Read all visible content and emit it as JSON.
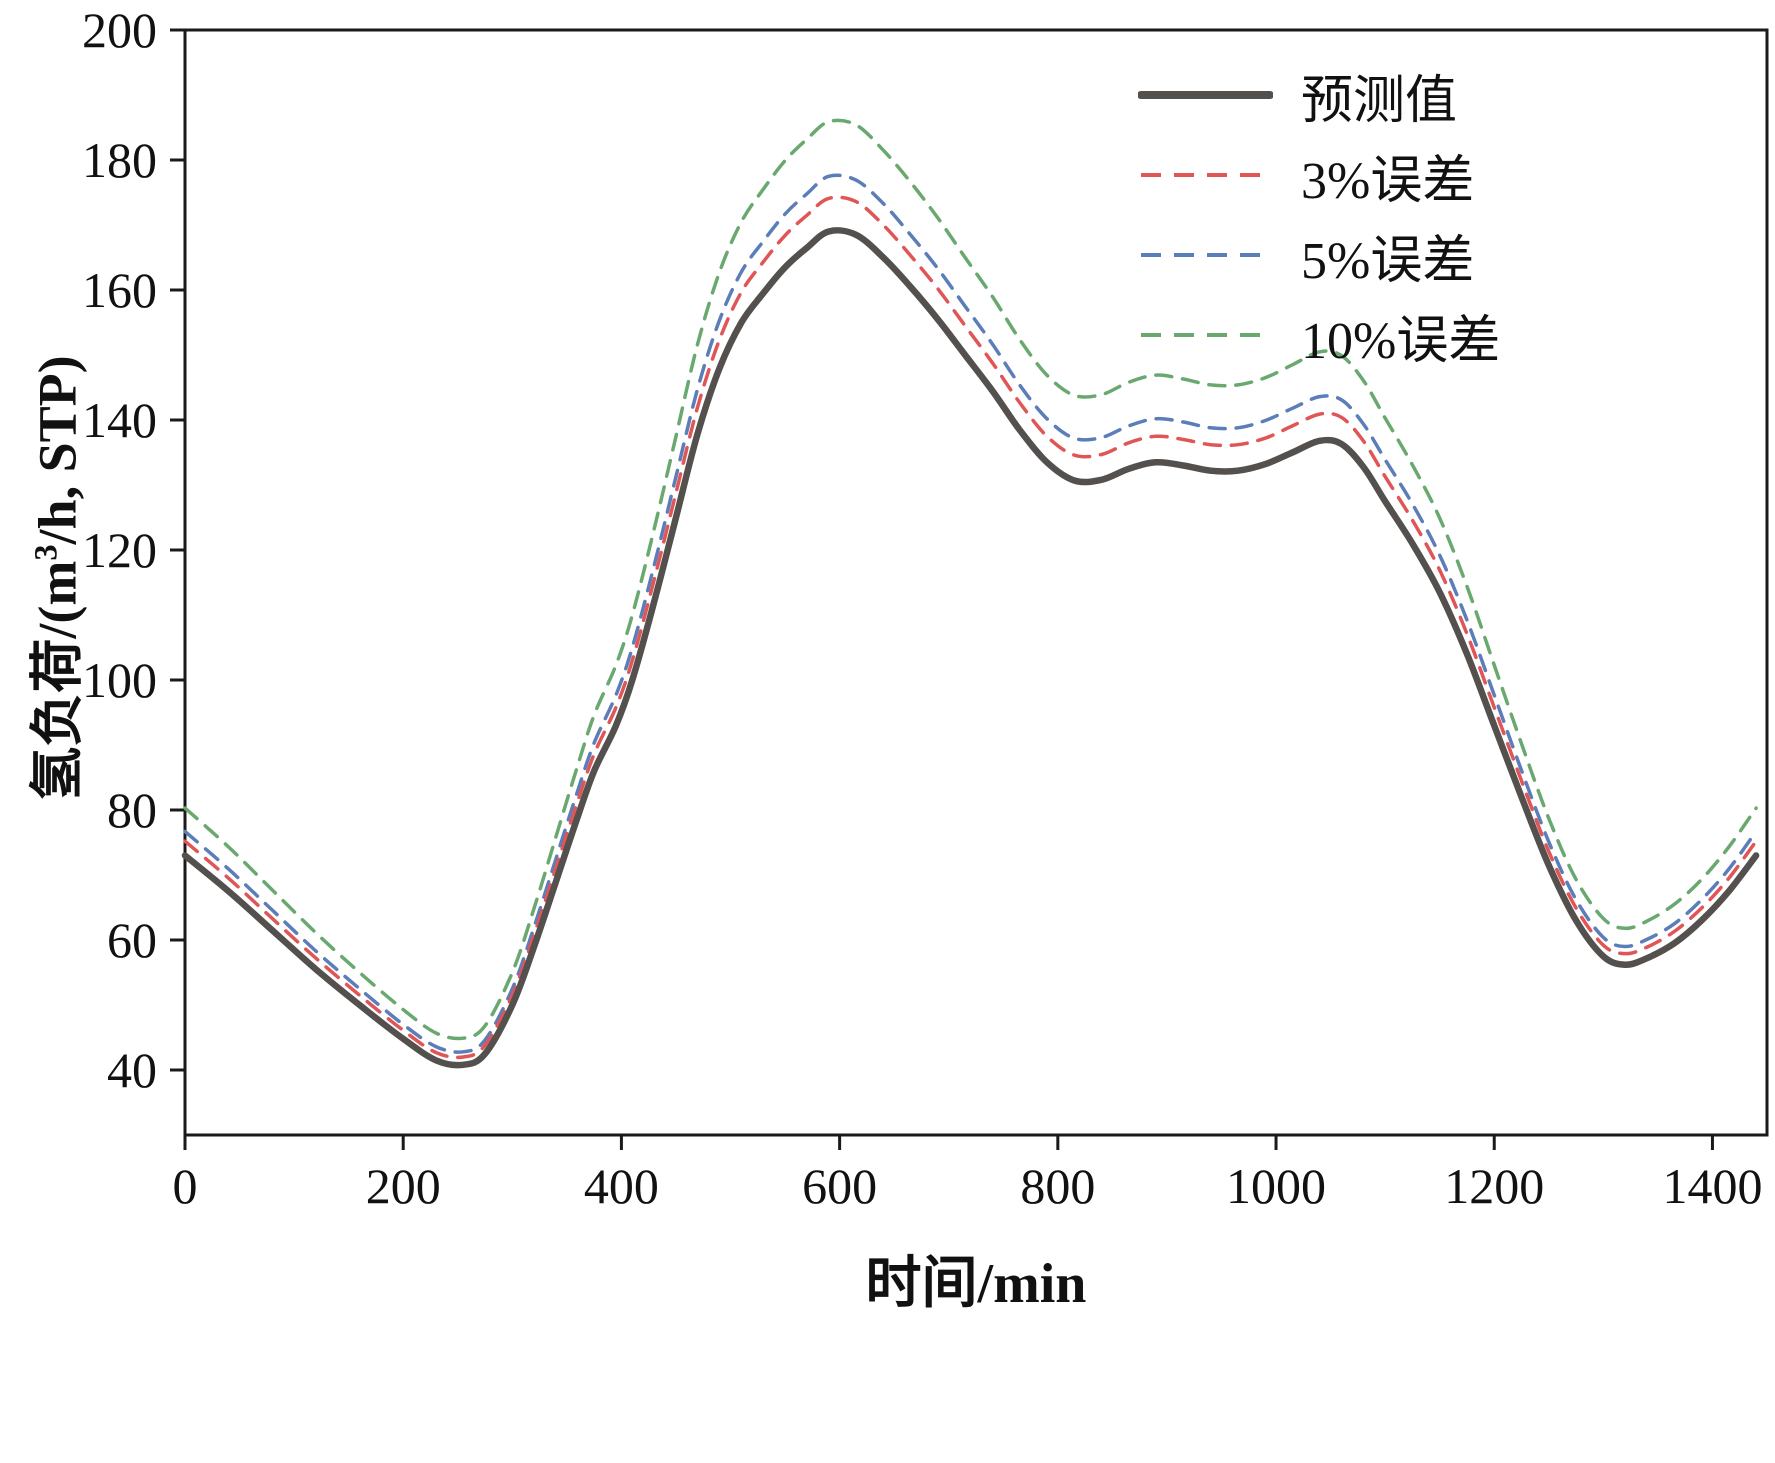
{
  "chart_data": {
    "type": "line",
    "title": "",
    "xlabel": "时间/min",
    "ylabel": "氢负荷/(m3/h, STP)",
    "ylabel_parts": {
      "pre": "氢负荷/(m",
      "sup": "3",
      "post": "/h, STP)"
    },
    "xlim": [
      0,
      1450
    ],
    "ylim": [
      30,
      200
    ],
    "xticks": [
      0,
      200,
      400,
      600,
      800,
      1000,
      1200,
      1400
    ],
    "yticks": [
      40,
      60,
      80,
      100,
      120,
      140,
      160,
      180,
      200
    ],
    "grid": false,
    "legend_position": "top-right",
    "axis_color": "#1a1a1a",
    "x": [
      0,
      40,
      80,
      120,
      160,
      200,
      230,
      255,
      275,
      300,
      320,
      340,
      360,
      375,
      395,
      410,
      430,
      450,
      470,
      490,
      510,
      530,
      550,
      570,
      590,
      615,
      640,
      665,
      690,
      715,
      740,
      765,
      790,
      815,
      840,
      865,
      890,
      915,
      940,
      965,
      990,
      1015,
      1040,
      1060,
      1080,
      1100,
      1125,
      1150,
      1175,
      1200,
      1225,
      1250,
      1275,
      1300,
      1320,
      1340,
      1365,
      1390,
      1415,
      1440
    ],
    "series": [
      {
        "name": "预测值",
        "color": "#54504e",
        "style": "solid",
        "values": [
          73,
          67.5,
          61.5,
          55.5,
          50,
          44.8,
          41.5,
          40.8,
          42.5,
          50,
          59,
          69,
          79,
          86,
          93,
          100,
          112,
          125,
          138,
          148,
          155,
          159.5,
          163.5,
          166.5,
          169,
          168.5,
          165,
          160.5,
          155.5,
          150,
          144.5,
          138.5,
          133.5,
          130.7,
          130.8,
          132.5,
          133.5,
          133,
          132.2,
          132.2,
          133.2,
          135,
          136.8,
          136.3,
          132.8,
          127.5,
          121,
          113.5,
          104,
          93,
          82,
          71.5,
          63,
          57.5,
          56.2,
          57.2,
          59.5,
          63,
          67.5,
          73
        ]
      },
      {
        "name": "3%误差",
        "color": "#e05555",
        "style": "dashed",
        "values": [
          75.2,
          69.5,
          63.3,
          57.2,
          51.5,
          46.1,
          42.7,
          42.0,
          43.8,
          51.5,
          60.8,
          71.1,
          81.4,
          88.6,
          95.8,
          103.0,
          115.4,
          128.8,
          142.1,
          152.4,
          159.7,
          164.3,
          168.4,
          171.5,
          174.1,
          173.6,
          170.0,
          165.3,
          160.2,
          154.5,
          148.8,
          142.7,
          137.5,
          134.6,
          134.7,
          136.5,
          137.5,
          137.0,
          136.2,
          136.2,
          137.2,
          139.1,
          140.9,
          140.4,
          136.8,
          131.3,
          124.6,
          116.9,
          107.1,
          95.8,
          84.5,
          73.6,
          64.9,
          59.2,
          57.9,
          58.9,
          61.3,
          64.9,
          69.5,
          75.2
        ]
      },
      {
        "name": "5%误差",
        "color": "#5b7db8",
        "style": "dashed",
        "values": [
          76.7,
          70.9,
          64.6,
          58.3,
          52.5,
          47.0,
          43.6,
          42.8,
          44.6,
          52.5,
          62.0,
          72.5,
          83.0,
          90.3,
          97.7,
          105.0,
          117.6,
          131.3,
          144.9,
          155.4,
          162.8,
          167.5,
          171.7,
          174.8,
          177.5,
          176.9,
          173.3,
          168.5,
          163.3,
          157.5,
          151.7,
          145.4,
          140.2,
          137.2,
          137.3,
          139.1,
          140.2,
          139.7,
          138.8,
          138.8,
          139.9,
          141.8,
          143.6,
          143.1,
          139.4,
          133.9,
          127.1,
          119.2,
          109.2,
          97.7,
          86.1,
          75.1,
          66.2,
          60.4,
          59.0,
          60.1,
          62.5,
          66.2,
          70.9,
          76.7
        ]
      },
      {
        "name": "10%误差",
        "color": "#69a96f",
        "style": "dashed",
        "values": [
          80.3,
          74.3,
          67.7,
          61.1,
          55.0,
          49.3,
          45.7,
          44.9,
          46.8,
          55.0,
          64.9,
          75.9,
          86.9,
          94.6,
          102.3,
          110.0,
          123.2,
          137.5,
          151.8,
          162.8,
          170.5,
          175.5,
          179.9,
          183.2,
          185.9,
          185.4,
          181.5,
          176.6,
          171.1,
          165.0,
          159.0,
          152.4,
          146.9,
          143.8,
          143.9,
          145.8,
          146.9,
          146.3,
          145.4,
          145.4,
          146.5,
          148.5,
          150.5,
          149.9,
          146.1,
          140.3,
          133.1,
          124.9,
          114.4,
          102.3,
          90.2,
          78.7,
          69.3,
          63.3,
          61.8,
          62.9,
          65.5,
          69.3,
          74.3,
          80.3
        ]
      }
    ]
  }
}
